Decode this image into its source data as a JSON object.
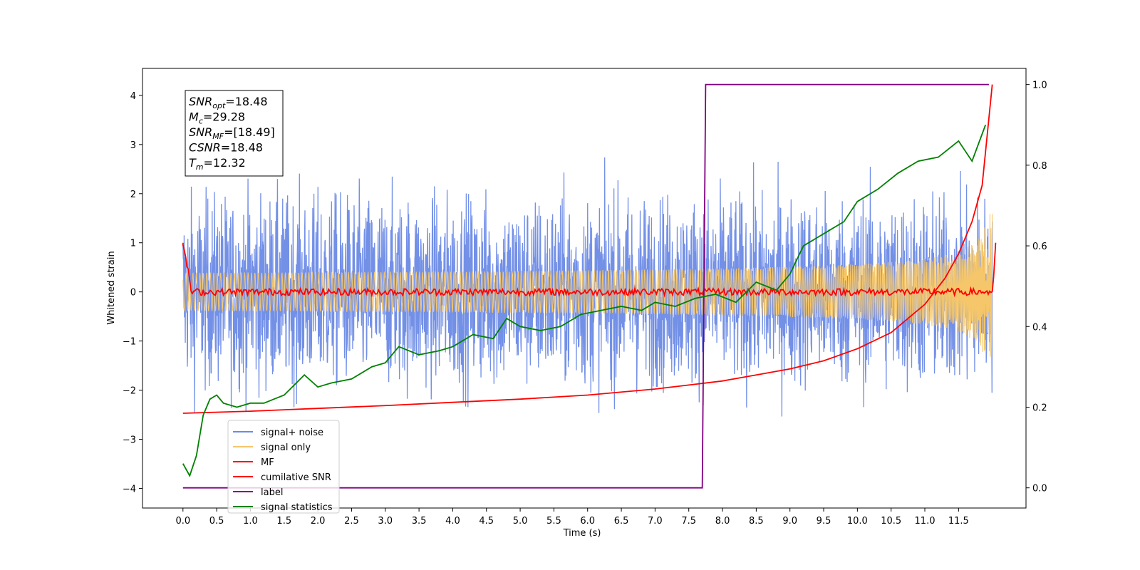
{
  "chart_data": {
    "type": "line",
    "xlabel": "Time (s)",
    "ylabel": "Whitened strain",
    "xlim": [
      -0.6,
      12.5
    ],
    "ylim": [
      -4.4,
      4.55
    ],
    "ylim_right": [
      -0.05,
      1.04
    ],
    "x_ticks": [
      "0.0",
      "0.5",
      "1.0",
      "1.5",
      "2.0",
      "2.5",
      "3.0",
      "3.5",
      "4.0",
      "4.5",
      "5.0",
      "5.5",
      "6.0",
      "6.5",
      "7.0",
      "7.5",
      "8.0",
      "8.5",
      "9.0",
      "9.5",
      "10.0",
      "10.5",
      "11.0",
      "11.5"
    ],
    "y_ticks": [
      "4",
      "3",
      "2",
      "1",
      "0",
      "−1",
      "−2",
      "−3",
      "−4"
    ],
    "y_right_ticks": [
      "1.0",
      "0.8",
      "0.6",
      "0.4",
      "0.2",
      "0.0"
    ],
    "annotation": [
      {
        "name": "SNR",
        "sub": "opt",
        "value": "=18.48"
      },
      {
        "name": "M",
        "sub": "c",
        "value": "=29.28"
      },
      {
        "name": "SNR",
        "sub": "MF",
        "value": "=[18.49]"
      },
      {
        "name": "CSNR",
        "sub": "",
        "value": "=18.48"
      },
      {
        "name": "T",
        "sub": "m",
        "value": "=12.32"
      }
    ],
    "legend_position": "lower-left",
    "legend": [
      {
        "label": "signal+ noise",
        "color": "#6b8ae6"
      },
      {
        "label": "signal only",
        "color": "#f5c66a"
      },
      {
        "label": "MF",
        "color": "#ff0000"
      },
      {
        "label": "cumilative SNR",
        "color": "#ff0000"
      },
      {
        "label": "label",
        "color": "#800080"
      },
      {
        "label": "signal statistics",
        "color": "#008000"
      }
    ],
    "series": [
      {
        "name": "signal+ noise",
        "axis": "left",
        "color": "#6b8ae6",
        "duration": 12.0,
        "noise_envelope": 2.9
      },
      {
        "name": "signal only",
        "axis": "left",
        "color": "#f5c66a",
        "duration": 12.0,
        "amplitude_start": 0.25,
        "amplitude_end": 1.6
      },
      {
        "name": "MF",
        "axis": "left",
        "color": "#ff0000",
        "x": [
          0.0,
          0.05,
          0.1,
          0.2,
          0.5,
          12.0,
          12.05
        ],
        "y": [
          1.0,
          0.2,
          0.1,
          0.0,
          0.0,
          0.0,
          1.0
        ]
      },
      {
        "name": "cumilative SNR",
        "axis": "right",
        "color": "#ff0000",
        "x": [
          0.0,
          1.0,
          2.0,
          3.0,
          4.0,
          5.0,
          6.0,
          7.0,
          7.5,
          8.0,
          8.5,
          9.0,
          9.5,
          10.0,
          10.5,
          11.0,
          11.3,
          11.5,
          11.7,
          11.85,
          12.0
        ],
        "y": [
          0.185,
          0.19,
          0.197,
          0.204,
          0.212,
          0.22,
          0.23,
          0.245,
          0.255,
          0.265,
          0.28,
          0.295,
          0.315,
          0.345,
          0.385,
          0.455,
          0.52,
          0.58,
          0.66,
          0.75,
          1.0
        ]
      },
      {
        "name": "label",
        "axis": "right",
        "color": "#800080",
        "x": [
          0.0,
          7.7,
          7.75,
          11.95
        ],
        "y": [
          0.0,
          0.0,
          1.0,
          1.0
        ]
      },
      {
        "name": "signal statistics",
        "axis": "right",
        "color": "#008000",
        "x": [
          0.0,
          0.1,
          0.2,
          0.3,
          0.4,
          0.5,
          0.6,
          0.8,
          1.0,
          1.2,
          1.5,
          1.8,
          2.0,
          2.2,
          2.5,
          2.8,
          3.0,
          3.2,
          3.5,
          3.8,
          4.0,
          4.3,
          4.6,
          4.8,
          5.0,
          5.3,
          5.6,
          5.9,
          6.2,
          6.5,
          6.8,
          7.0,
          7.3,
          7.6,
          7.9,
          8.2,
          8.5,
          8.8,
          9.0,
          9.2,
          9.5,
          9.8,
          10.0,
          10.3,
          10.6,
          10.9,
          11.2,
          11.5,
          11.7,
          11.9
        ],
        "y": [
          0.06,
          0.03,
          0.08,
          0.18,
          0.22,
          0.23,
          0.21,
          0.2,
          0.21,
          0.21,
          0.23,
          0.28,
          0.25,
          0.26,
          0.27,
          0.3,
          0.31,
          0.35,
          0.33,
          0.34,
          0.35,
          0.38,
          0.37,
          0.42,
          0.4,
          0.39,
          0.4,
          0.43,
          0.44,
          0.45,
          0.44,
          0.46,
          0.45,
          0.47,
          0.48,
          0.46,
          0.51,
          0.49,
          0.53,
          0.6,
          0.63,
          0.66,
          0.71,
          0.74,
          0.78,
          0.81,
          0.82,
          0.86,
          0.81,
          0.9
        ]
      }
    ]
  }
}
